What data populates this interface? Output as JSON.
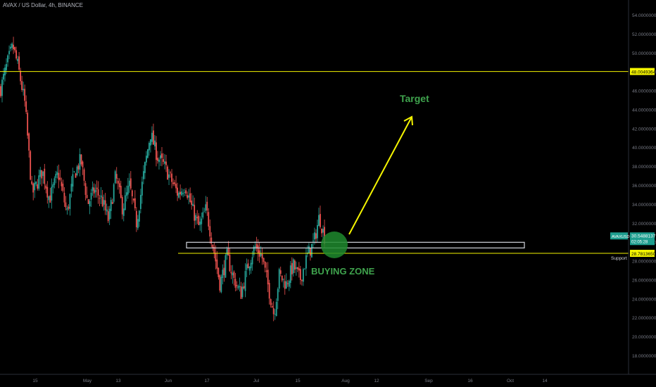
{
  "header": {
    "symbol_title": "AVAX / US Dollar, 4h, BINANCE"
  },
  "colors": {
    "background": "#000000",
    "up_candle": "#26a69a",
    "down_candle": "#ef5350",
    "resistance_line": "#f5f500",
    "support_line": "#f5f500",
    "arrow": "#f5f500",
    "target_text": "#3fa34d",
    "buying_zone_text": "#3fa34d",
    "buying_zone_circle": "#1e8a2e",
    "zone_rect_stroke": "#d1d4dc",
    "axis_text": "#787b86",
    "price_tag_bg": "#1e9e8f"
  },
  "chart_data": {
    "type": "candlestick",
    "title": "AVAX / US Dollar, 4h, BINANCE",
    "ylim": [
      17.0,
      56.0
    ],
    "y_ticks": [
      "54.0000000",
      "52.0000000",
      "50.0000000",
      "48.0000000",
      "46.0000000",
      "44.0000000",
      "42.0000000",
      "40.0000000",
      "38.0000000",
      "36.0000000",
      "34.0000000",
      "32.0000000",
      "30.0000000",
      "28.0000000",
      "26.0000000",
      "24.0000000",
      "22.0000000",
      "20.0000000",
      "18.0000000"
    ],
    "x_ticks": [
      "15",
      "May",
      "13",
      "Jun",
      "17",
      "Jul",
      "15",
      "Aug",
      "12",
      "Sep",
      "16",
      "Oct",
      "14"
    ],
    "close_path": [
      {
        "t": 0,
        "p": 46.2
      },
      {
        "t": 2,
        "p": 49.0
      },
      {
        "t": 3.5,
        "p": 50.7
      },
      {
        "t": 5,
        "p": 48.5
      },
      {
        "t": 7,
        "p": 44.5
      },
      {
        "t": 9,
        "p": 35.0
      },
      {
        "t": 12,
        "p": 37.5
      },
      {
        "t": 14,
        "p": 34.5
      },
      {
        "t": 16.5,
        "p": 37.3
      },
      {
        "t": 19,
        "p": 33.0
      },
      {
        "t": 21,
        "p": 37.0
      },
      {
        "t": 23,
        "p": 38.7
      },
      {
        "t": 25,
        "p": 34.0
      },
      {
        "t": 27,
        "p": 35.5
      },
      {
        "t": 29,
        "p": 34.5
      },
      {
        "t": 31,
        "p": 32.2
      },
      {
        "t": 33,
        "p": 37.0
      },
      {
        "t": 35,
        "p": 33.5
      },
      {
        "t": 37,
        "p": 36.0
      },
      {
        "t": 39,
        "p": 32.0
      },
      {
        "t": 41,
        "p": 37.0
      },
      {
        "t": 43,
        "p": 41.5
      },
      {
        "t": 45,
        "p": 39.0
      },
      {
        "t": 47,
        "p": 38.0
      },
      {
        "t": 49,
        "p": 36.5
      },
      {
        "t": 51,
        "p": 35.0
      },
      {
        "t": 53,
        "p": 36.0
      },
      {
        "t": 55,
        "p": 33.5
      },
      {
        "t": 57,
        "p": 31.5
      },
      {
        "t": 59,
        "p": 33.5
      },
      {
        "t": 61,
        "p": 29.5
      },
      {
        "t": 63,
        "p": 25.5
      },
      {
        "t": 65,
        "p": 28.5
      },
      {
        "t": 67,
        "p": 26.0
      },
      {
        "t": 69,
        "p": 24.5
      },
      {
        "t": 71,
        "p": 27.5
      },
      {
        "t": 73,
        "p": 29.5
      },
      {
        "t": 75,
        "p": 28.5
      },
      {
        "t": 77,
        "p": 25.0
      },
      {
        "t": 78.5,
        "p": 22.3
      },
      {
        "t": 80,
        "p": 26.5
      },
      {
        "t": 82,
        "p": 25.5
      },
      {
        "t": 84,
        "p": 27.5
      },
      {
        "t": 86,
        "p": 26.0
      },
      {
        "t": 88,
        "p": 28.5
      },
      {
        "t": 90,
        "p": 30.0
      },
      {
        "t": 91.5,
        "p": 32.7
      },
      {
        "t": 93,
        "p": 30.5
      }
    ],
    "resistance": {
      "price": 48.0049364,
      "label": "48.0049364"
    },
    "support": {
      "price": 28.781365,
      "label": "28.7813650",
      "name": "Support"
    },
    "current_price": {
      "price": 30.5488137,
      "symbol": "AVAXUSD",
      "label": "30.5488137",
      "countdown": "02:05:28"
    },
    "zone_rect": {
      "low": 29.35,
      "high": 29.95
    },
    "annotations": {
      "target": "Target",
      "buying_zone": "BUYING ZONE"
    },
    "legend": "none"
  }
}
